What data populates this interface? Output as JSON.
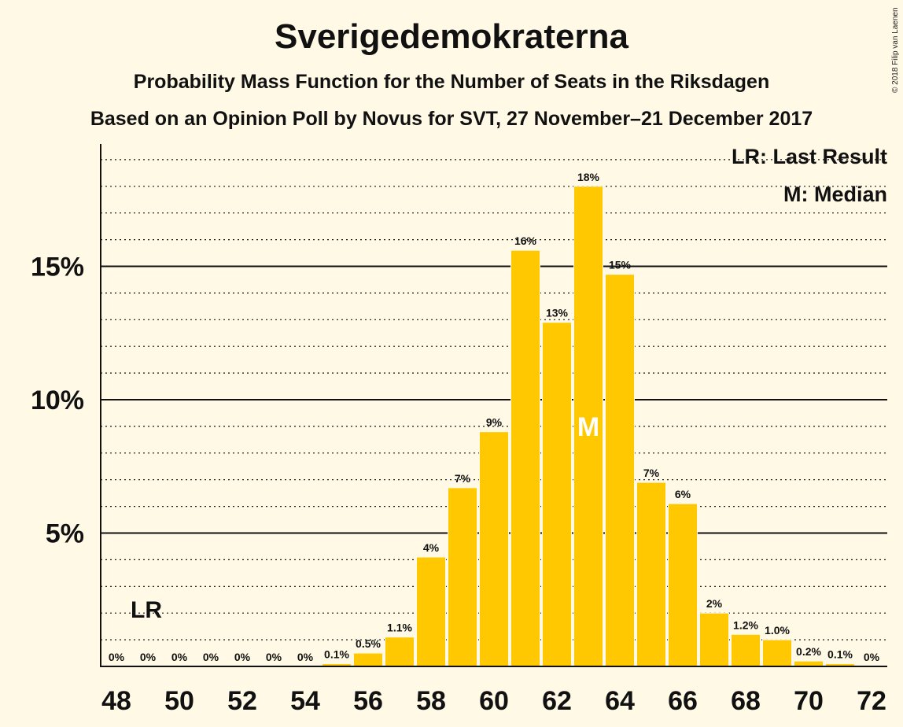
{
  "header": {
    "title": "Sverigedemokraterna",
    "subtitle1": "Probability Mass Function for the Number of Seats in the Riksdagen",
    "subtitle2": "Based on an Opinion Poll by Novus for SVT, 27 November–21 December 2017",
    "copyright": "© 2018 Filip van Laenen"
  },
  "legend": {
    "lr": "LR: Last Result",
    "m": "M: Median"
  },
  "colors": {
    "background": "#fff9e6",
    "bar": "#ffc800",
    "text": "#111111"
  },
  "chart_data": {
    "type": "bar",
    "title": "Sverigedemokraterna",
    "xlabel": "",
    "ylabel": "",
    "categories": [
      48,
      49,
      50,
      51,
      52,
      53,
      54,
      55,
      56,
      57,
      58,
      59,
      60,
      61,
      62,
      63,
      64,
      65,
      66,
      67,
      68,
      69,
      70,
      71,
      72
    ],
    "values": [
      0,
      0,
      0,
      0,
      0,
      0,
      0,
      0.1,
      0.5,
      1.1,
      4.1,
      6.7,
      8.8,
      15.6,
      12.9,
      18.0,
      14.7,
      6.9,
      6.1,
      2.0,
      1.2,
      1.0,
      0.2,
      0.1,
      0
    ],
    "labels": [
      "0%",
      "0%",
      "0%",
      "0%",
      "0%",
      "0%",
      "0%",
      "0.1%",
      "0.5%",
      "1.1%",
      "4%",
      "7%",
      "9%",
      "16%",
      "13%",
      "18%",
      "15%",
      "7%",
      "6%",
      "2%",
      "1.2%",
      "1.0%",
      "0.2%",
      "0.1%",
      "0%"
    ],
    "x_ticks": [
      48,
      50,
      52,
      54,
      56,
      58,
      60,
      62,
      64,
      66,
      68,
      70,
      72
    ],
    "y_ticks": [
      5,
      10,
      15
    ],
    "y_tick_labels": [
      "5%",
      "10%",
      "15%"
    ],
    "ylim": [
      0,
      19
    ],
    "grid": "dotted every 1%, solid at 5% steps",
    "last_result": 49,
    "last_result_label": "LR",
    "median": 63,
    "median_label": "M"
  }
}
